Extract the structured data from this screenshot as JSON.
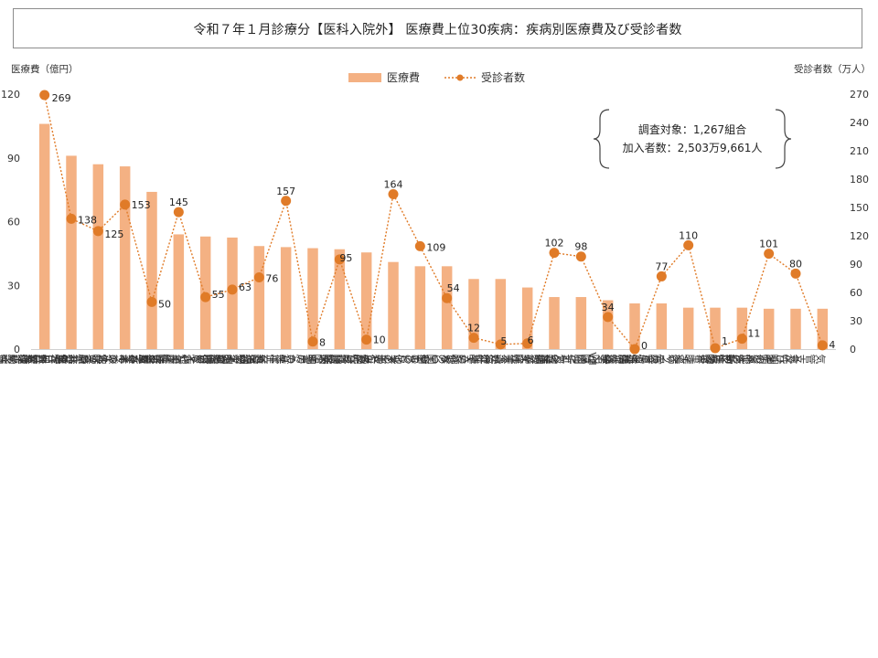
{
  "title": "令和７年１月診療分【医科入院外】 医療費上位30疾病：疾病別医療費及び受診者数",
  "chart_data": {
    "type": "bar",
    "ylabel_left": "医療費（億円）",
    "ylabel_right": "受診者数（万人）",
    "ylim_left": [
      0,
      120
    ],
    "ylim_right": [
      0,
      270
    ],
    "yticks_left": [
      "0",
      "30",
      "60",
      "90",
      "120"
    ],
    "yticks_right": [
      "0",
      "30",
      "60",
      "90",
      "120",
      "150",
      "180",
      "210",
      "240",
      "270"
    ],
    "legend": {
      "placement": "top-center",
      "bar_label": "医療費",
      "line_label": "受診者数"
    },
    "colors": {
      "bar": "#f4b183",
      "line": "#e07b28"
    },
    "categories": [
      "血管運動性鼻炎及びアレルギー性鼻炎＜鼻アレルギー＞",
      "COVID-19",
      "喘息",
      "本態性（原発性＜一次性＞）高血圧（症）",
      "2型＜インスリン非依存性＞糖尿病＜NIDDM＞",
      "急性気管支炎",
      "アトピー性皮膚炎",
      "その他のインフルエンザウイルスが分離されたインフルエンザ",
      "詳細不明の糖尿病",
      "リポタンパク＜蛋白＞代謝障害及びその他の脂（質）血症",
      "乳房の悪性新生物＜腫瘍＞",
      "睡眠障害",
      "慢性腎臓病",
      "多部位及び部位不明の急性上気道感染症",
      "その他の表皮肥厚",
      "うつ病エピソード",
      "その他の関節リウマチ",
      "潰瘍性大腸炎",
      "女性不妊症",
      "結膜炎",
      "屈折及び調節障害",
      "緑内障",
      "遺伝性第Ⅷ因子欠乏症",
      "胃食道逆流症",
      "インフルエンザ，インフルエンザウイルスが分離されないもの",
      "クローン病［限局性腸炎］",
      "多動性障害",
      "その他の皮膚炎",
      "急性咽頭炎",
      "気管支及び肺の悪性新生物＜腫瘍＞"
    ],
    "series": [
      {
        "name": "医療費",
        "type": "bar",
        "axis": "left",
        "values": [
          106,
          91,
          87,
          86,
          74,
          54,
          53,
          52.5,
          48.5,
          48,
          47.5,
          47,
          45.5,
          41,
          39,
          39,
          33,
          33,
          29,
          24.5,
          24.5,
          23,
          21.5,
          21.5,
          19.5,
          19.5,
          19.5,
          19,
          19,
          19
        ]
      },
      {
        "name": "受診者数",
        "type": "line",
        "axis": "right",
        "values": [
          269,
          138,
          125,
          153,
          50,
          145,
          55,
          63,
          76,
          157,
          8,
          95,
          10,
          164,
          109,
          54,
          12,
          5,
          6,
          102,
          98,
          34,
          0,
          77,
          110,
          1,
          11,
          101,
          80,
          4
        ],
        "labels": [
          "269",
          "138",
          "125",
          "153",
          "50",
          "145",
          "55",
          "63",
          "76",
          "157",
          "8",
          "95",
          "10",
          "164",
          "109",
          "54",
          "12",
          "5",
          "6",
          "102",
          "98",
          "34",
          "0",
          "77",
          "110",
          "1",
          "11",
          "101",
          "80",
          "4"
        ]
      }
    ],
    "annotation": {
      "line1": "調査対象：1,267組合",
      "line2": "加入者数：2,503万9,661人"
    }
  }
}
